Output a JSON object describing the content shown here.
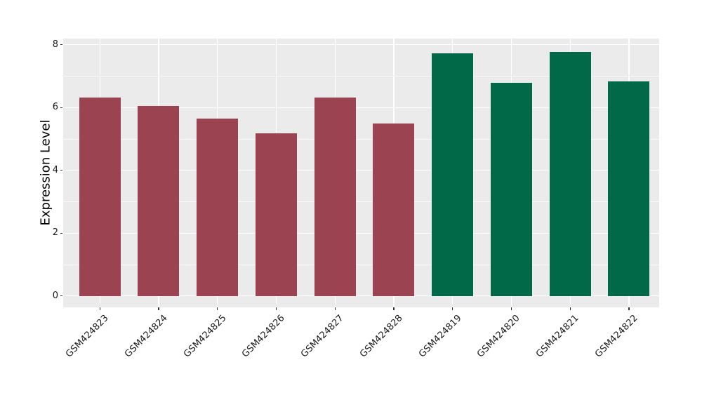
{
  "chart_data": {
    "type": "bar",
    "title": "",
    "xlabel": "",
    "ylabel": "Expression Level",
    "categories": [
      "GSM424823",
      "GSM424824",
      "GSM424825",
      "GSM424826",
      "GSM424827",
      "GSM424828",
      "GSM424819",
      "GSM424820",
      "GSM424821",
      "GSM424822"
    ],
    "values": [
      6.32,
      6.05,
      5.64,
      5.17,
      6.32,
      5.5,
      7.72,
      6.78,
      7.77,
      6.84
    ],
    "bar_colors": [
      "#9C4351",
      "#9C4351",
      "#9C4351",
      "#9C4351",
      "#9C4351",
      "#9C4351",
      "#016948",
      "#016948",
      "#016948",
      "#016948"
    ],
    "color_groups": [
      {
        "color": "#9C4351",
        "samples": [
          "GSM424823",
          "GSM424824",
          "GSM424825",
          "GSM424826",
          "GSM424827",
          "GSM424828"
        ]
      },
      {
        "color": "#016948",
        "samples": [
          "GSM424819",
          "GSM424820",
          "GSM424821",
          "GSM424822"
        ]
      }
    ],
    "ylim": [
      0,
      8
    ],
    "yticks_major": [
      0,
      2,
      4,
      6,
      8
    ],
    "yticks_minor": [
      1,
      3,
      5,
      7
    ],
    "grid": "white major+minor horizontal lines and vertical category lines on gray panel",
    "legend": "none",
    "panel_background": "#EBEBEB",
    "gridline_color": "#FFFFFF",
    "axis_text_color": "#1B1B1B",
    "x_tick_rotation_deg": 45
  }
}
